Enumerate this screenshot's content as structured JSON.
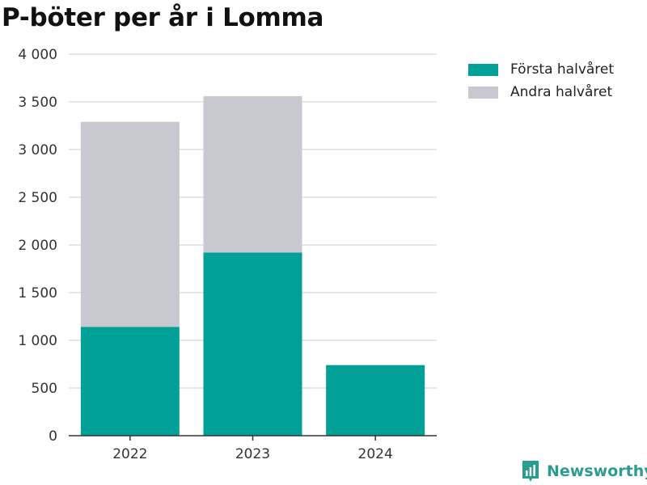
{
  "colors": {
    "first_half": "#00a096",
    "second_half": "#c8c8d0",
    "grid": "#dddddd",
    "axis": "#333333",
    "brand": "#2a9d8f"
  },
  "brand": {
    "name": "Newsworthy",
    "icon": "newsworthy-logo-icon"
  },
  "chart_data": {
    "type": "bar",
    "stacked": true,
    "title": "P-böter per år i Lomma",
    "categories": [
      "2022",
      "2023",
      "2024"
    ],
    "series": [
      {
        "name": "Första halvåret",
        "values": [
          1140,
          1920,
          740
        ],
        "color": "#00a096"
      },
      {
        "name": "Andra halvåret",
        "values": [
          2150,
          1640,
          0
        ],
        "color": "#c8c8d0"
      }
    ],
    "ylim": [
      0,
      4000
    ],
    "yticks": [
      0,
      500,
      1000,
      1500,
      2000,
      2500,
      3000,
      3500,
      4000
    ],
    "ytick_labels": [
      "0",
      "500",
      "1 000",
      "1 500",
      "2 000",
      "2 500",
      "3 000",
      "3 500",
      "4 000"
    ],
    "xlabel": "",
    "ylabel": "",
    "grid": true,
    "legend_position": "top-right"
  }
}
